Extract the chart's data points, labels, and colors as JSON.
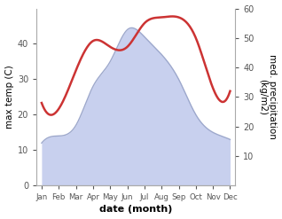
{
  "months": [
    "Jan",
    "Feb",
    "Mar",
    "Apr",
    "May",
    "Jun",
    "Jul",
    "Aug",
    "Sep",
    "Oct",
    "Nov",
    "Dec"
  ],
  "temperature": [
    12,
    14,
    17,
    28,
    35,
    44,
    42,
    37,
    30,
    20,
    15,
    13
  ],
  "precipitation": [
    28,
    26,
    39,
    49,
    47,
    47,
    55,
    57,
    57,
    50,
    33,
    32
  ],
  "temp_fill_color": "#c8d0ee",
  "temp_line_color": "#9da8cc",
  "precip_color": "#cc3333",
  "temp_ylim": [
    0,
    50
  ],
  "precip_ylim": [
    0,
    60
  ],
  "temp_yticks": [
    0,
    10,
    20,
    30,
    40
  ],
  "precip_yticks": [
    10,
    20,
    30,
    40,
    50,
    60
  ],
  "xlabel": "date (month)",
  "ylabel_left": "max temp (C)",
  "ylabel_right": "med. precipitation\n(kg/m2)",
  "background_color": "#ffffff",
  "spine_color": "#aaaaaa"
}
